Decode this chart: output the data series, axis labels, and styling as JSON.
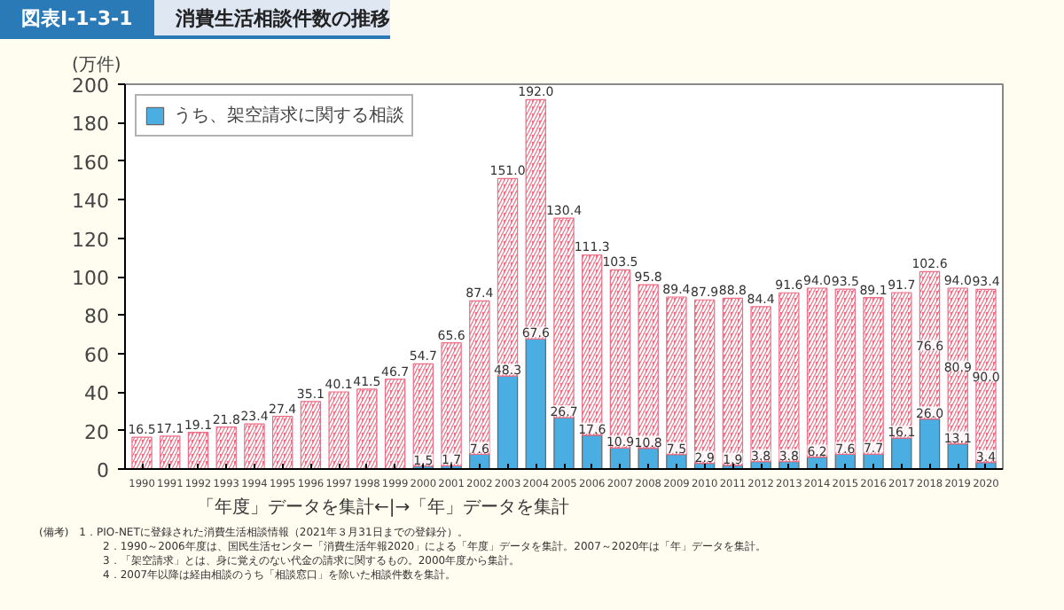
{
  "chart_data": {
    "type": "bar",
    "title": "図表Ⅰ-1-3-1",
    "subtitle": "消費生活相談件数の推移",
    "ylabel": "(万件)",
    "categories": [
      "1990",
      "1991",
      "1992",
      "1993",
      "1994",
      "1995",
      "1996",
      "1997",
      "1998",
      "1999",
      "2000",
      "2001",
      "2002",
      "2003",
      "2004",
      "2005",
      "2006",
      "2007",
      "2008",
      "2009",
      "2010",
      "2011",
      "2012",
      "2013",
      "2014",
      "2015",
      "2016",
      "2017",
      "2018",
      "2019",
      "2020"
    ],
    "stacked": true,
    "ylim": [
      0,
      200
    ],
    "yticks": [
      0,
      20,
      40,
      60,
      80,
      100,
      120,
      140,
      160,
      180,
      200
    ],
    "grid": false,
    "legend": "top left",
    "series": [
      {
        "name": "うち、架空請求に関する相談",
        "color": "#4aaee2",
        "values": [
          null,
          null,
          null,
          null,
          null,
          null,
          null,
          null,
          null,
          null,
          1.5,
          1.7,
          7.6,
          48.3,
          67.6,
          26.7,
          17.6,
          10.9,
          10.8,
          7.5,
          2.9,
          1.9,
          3.8,
          3.8,
          6.2,
          7.6,
          7.7,
          16.1,
          26.0,
          13.1,
          3.4
        ],
        "value_labels": [
          null,
          null,
          null,
          null,
          null,
          null,
          null,
          null,
          null,
          null,
          "1.5",
          "1.7",
          "7.6",
          "48.3",
          "67.6",
          "26.7",
          "17.6",
          "10.9",
          "10.8",
          "7.5",
          "2.9",
          "1.9",
          "3.8",
          "3.8",
          "6.2",
          "7.6",
          "7.7",
          "16.1",
          "26.0",
          "13.1",
          "3.4"
        ]
      },
      {
        "color": "#ec6f86",
        "values": [
          16.5,
          17.1,
          19.1,
          21.8,
          23.4,
          27.4,
          35.1,
          40.1,
          41.5,
          46.7,
          53.2,
          63.9,
          79.8,
          102.7,
          124.4,
          103.7,
          93.7,
          92.6,
          85.0,
          81.9,
          85.0,
          86.9,
          80.6,
          87.8,
          87.8,
          85.9,
          81.4,
          75.6,
          76.6,
          80.9,
          90.0
        ],
        "value_labels": [
          null,
          null,
          null,
          null,
          null,
          null,
          null,
          null,
          null,
          null,
          null,
          null,
          null,
          null,
          null,
          null,
          null,
          null,
          null,
          null,
          null,
          null,
          null,
          null,
          null,
          null,
          null,
          null,
          "76.6",
          "80.9",
          "90.0"
        ]
      }
    ],
    "totals": [
      "16.5",
      "17.1",
      "19.1",
      "21.8",
      "23.4",
      "27.4",
      "35.1",
      "40.1",
      "41.5",
      "46.7",
      "54.7",
      "65.6",
      "87.4",
      "151.0",
      "192.0",
      "130.4",
      "111.3",
      "103.5",
      "95.8",
      "89.4",
      "87.9",
      "88.8",
      "84.4",
      "91.6",
      "94.0",
      "93.5",
      "89.1",
      "91.7",
      "102.6",
      "94.0",
      "93.4"
    ],
    "annotations": [
      "「年度」データを集計←|→「年」データを集計",
      "(備考)　1．PIO-NETに登録された消費生活相談情報（2021年３月31日までの登録分）。",
      "2．1990～2006年度は、国民生活センター「消費生活年報2020」による「年度」データを集計。2007～2020年は「年」データを集計。",
      "3．「架空請求」とは、身に覚えのない代金の請求に関するもの。2000年度から集計。",
      "4．2007年以降は経由相談のうち「相談窓口」を除いた相談件数を集計。"
    ]
  }
}
